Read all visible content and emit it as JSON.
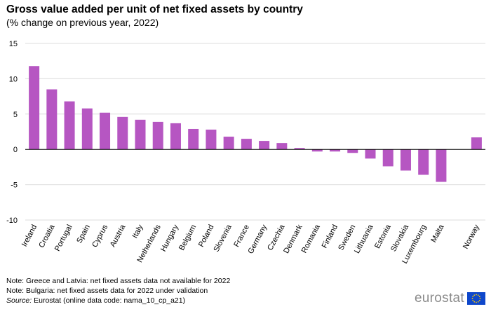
{
  "header": {
    "title": "Gross value added per unit of net fixed assets by country",
    "subtitle": "(% change on previous year, 2022)"
  },
  "notes": {
    "line1": "Note: Greece and Latvia:  net fixed assets data not available for 2022",
    "line2": "Note: Bulgaria: net fixed assets data for 2022 under validation",
    "source_label": "Source:",
    "source_text": " Eurostat (online data code: nama_10_cp_a21)"
  },
  "branding": {
    "logo_text": "eurostat",
    "logo_icon": "eu-flag-icon"
  },
  "colors": {
    "bar": "#b656c2",
    "grid": "#dcdcdc",
    "axis": "#000000",
    "flag_blue": "#0e47cb",
    "flag_star": "#ffcc00"
  },
  "chart_data": {
    "type": "bar",
    "title": "Gross value added per unit of net fixed assets by country",
    "subtitle": "(% change on previous year, 2022)",
    "xlabel": "",
    "ylabel": "",
    "ylim": [
      -10,
      15
    ],
    "yticks": [
      -10,
      -5,
      0,
      5,
      10,
      15
    ],
    "grid": true,
    "categories": [
      "Ireland",
      "Croatia",
      "Portugal",
      "Spain",
      "Cyprus",
      "Austria",
      "Italy",
      "Netherlands",
      "Hungary",
      "Belgium",
      "Poland",
      "Slovenia",
      "France",
      "Germany",
      "Czechia",
      "Denmark",
      "Romania",
      "Finland",
      "Sweden",
      "Lithuania",
      "Estonia",
      "Slovakia",
      "Luxembourg",
      "Malta",
      "",
      "Norway"
    ],
    "values": [
      11.8,
      8.5,
      6.8,
      5.8,
      5.2,
      4.6,
      4.2,
      3.9,
      3.7,
      2.9,
      2.8,
      1.8,
      1.5,
      1.2,
      0.9,
      0.2,
      -0.3,
      -0.3,
      -0.5,
      -1.3,
      -2.4,
      -3.0,
      -3.6,
      -4.6,
      null,
      1.7
    ]
  }
}
